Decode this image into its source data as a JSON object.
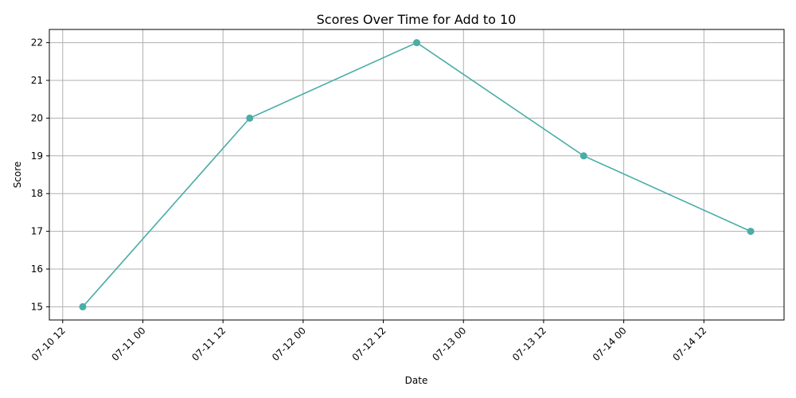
{
  "chart_data": {
    "type": "line",
    "title": "Scores Over Time for Add to 10",
    "xlabel": "Date",
    "ylabel": "Score",
    "x_is_time": true,
    "x": [
      "2024-07-10T15:00",
      "2024-07-11T16:00",
      "2024-07-12T17:00",
      "2024-07-13T18:00",
      "2024-07-14T19:00"
    ],
    "series": [
      {
        "values": [
          15,
          20,
          22,
          19,
          17
        ]
      }
    ],
    "xlim": [
      "2024-07-10T10:00",
      "2024-07-15T00:00"
    ],
    "x_ticks": [
      "2024-07-10T12:00",
      "2024-07-11T00:00",
      "2024-07-11T12:00",
      "2024-07-12T00:00",
      "2024-07-12T12:00",
      "2024-07-13T00:00",
      "2024-07-13T12:00",
      "2024-07-14T00:00",
      "2024-07-14T12:00"
    ],
    "x_tick_labels": [
      "07-10 12",
      "07-11 00",
      "07-11 12",
      "07-12 00",
      "07-12 12",
      "07-13 00",
      "07-13 12",
      "07-14 00",
      "07-14 12"
    ],
    "ylim": [
      14.65,
      22.35
    ],
    "y_ticks": [
      15,
      16,
      17,
      18,
      19,
      20,
      21,
      22
    ],
    "y_tick_labels": [
      "15",
      "16",
      "17",
      "18",
      "19",
      "20",
      "21",
      "22"
    ],
    "grid": true,
    "marker": "circle",
    "colors": {
      "series": "#4aada6",
      "grid": "#b0b0b0"
    }
  }
}
